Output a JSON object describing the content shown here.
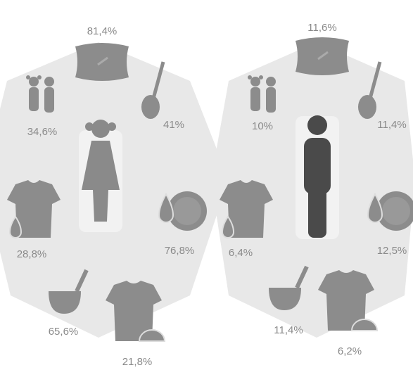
{
  "panels": [
    {
      "items": [
        {
          "label": "81,4%"
        },
        {
          "label": "41%"
        },
        {
          "label": "76,8%"
        },
        {
          "label": "21,8%"
        },
        {
          "label": "65,6%"
        },
        {
          "label": "28,8%"
        },
        {
          "label": "34,6%"
        }
      ]
    },
    {
      "items": [
        {
          "label": "11,6%"
        },
        {
          "label": "11,4%"
        },
        {
          "label": "12,5%"
        },
        {
          "label": "6,2%"
        },
        {
          "label": "11,4%"
        },
        {
          "label": "6,4%"
        },
        {
          "label": "10%"
        }
      ]
    }
  ]
}
